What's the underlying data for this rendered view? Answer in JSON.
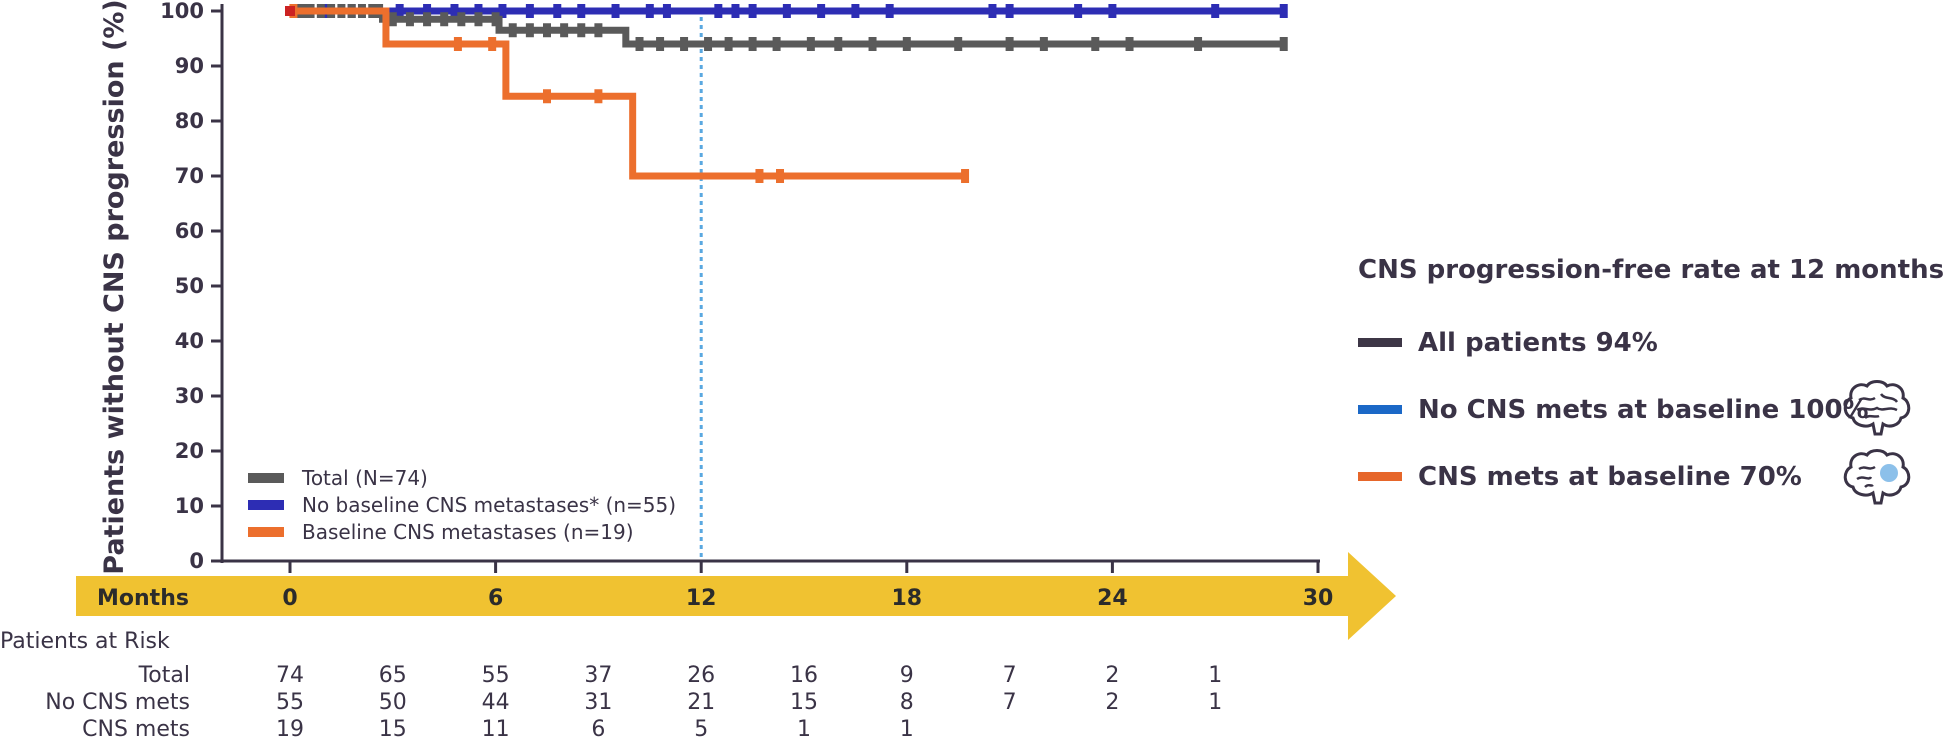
{
  "chart_data": {
    "type": "line",
    "step": true,
    "ylabel": "Patients without CNS progression (%)",
    "xlabel": "Months",
    "xlim": [
      0,
      30
    ],
    "ylim": [
      0,
      100
    ],
    "xticks": [
      "0",
      "6",
      "12",
      "18",
      "24",
      "30"
    ],
    "yticks": [
      "0",
      "10",
      "20",
      "30",
      "40",
      "50",
      "60",
      "70",
      "80",
      "90",
      "100"
    ],
    "reference_line_x": 12,
    "grid": false,
    "legend_position": "lower-left",
    "series": [
      {
        "name": "Total (N=74)",
        "color": "#5a5a5a",
        "x": [
          0,
          2.7,
          6.1,
          9.8,
          29
        ],
        "y": [
          100,
          98.5,
          96.5,
          94,
          94
        ],
        "censored_x": [
          0.2,
          0.4,
          0.6,
          0.9,
          1.2,
          1.5,
          1.8,
          2.1,
          2.4,
          2.6,
          3.0,
          3.5,
          4.0,
          4.5,
          5.0,
          5.5,
          6.0,
          6.5,
          7.0,
          7.5,
          8.0,
          8.5,
          9.0,
          10.2,
          10.8,
          11.5,
          12.2,
          12.8,
          13.5,
          14.2,
          15.2,
          16.0,
          17.0,
          18.0,
          19.5,
          21.0,
          22.0,
          23.5,
          24.5,
          26.5,
          29.0
        ]
      },
      {
        "name": "No baseline CNS metastases* (n=55)",
        "color": "#2d2db4",
        "x": [
          0,
          29
        ],
        "y": [
          100,
          100
        ],
        "censored_x": [
          0.5,
          1.0,
          1.8,
          2.5,
          3.2,
          4.0,
          4.8,
          5.5,
          6.2,
          7.0,
          7.8,
          8.5,
          9.5,
          10.5,
          11.0,
          12.5,
          13.0,
          13.5,
          14.5,
          15.5,
          16.5,
          17.5,
          20.5,
          21.0,
          23.0,
          24.0,
          27.0,
          29.0
        ]
      },
      {
        "name": "Baseline CNS metastases (n=19)",
        "color": "#ec6f2d",
        "x": [
          0,
          2.8,
          6.3,
          10.0,
          19.7
        ],
        "y": [
          100,
          94,
          84.5,
          70,
          70
        ],
        "censored_x": [
          0.1,
          4.9,
          5.9,
          7.5,
          9.0,
          13.7,
          14.3,
          19.7
        ]
      }
    ],
    "at_risk": {
      "title": "Patients at Risk",
      "times": [
        0,
        3,
        6,
        9,
        12,
        15,
        18,
        21,
        24,
        27
      ],
      "rows": [
        {
          "label": "Total",
          "values": [
            "74",
            "65",
            "55",
            "37",
            "26",
            "16",
            "9",
            "7",
            "2",
            "1"
          ]
        },
        {
          "label": "No CNS mets",
          "values": [
            "55",
            "50",
            "44",
            "31",
            "21",
            "15",
            "8",
            "7",
            "2",
            "1"
          ]
        },
        {
          "label": "CNS mets",
          "values": [
            "19",
            "15",
            "11",
            "6",
            "5",
            "1",
            "1",
            "",
            "",
            ""
          ]
        }
      ]
    }
  },
  "side_panel": {
    "title": "CNS progression-free rate at 12 months",
    "items": [
      {
        "label": "All patients 94%",
        "color": "#3d3646",
        "icon": "none"
      },
      {
        "label": "No CNS mets at baseline 100%",
        "color": "#1b68c7",
        "icon": "brain-icon"
      },
      {
        "label": "CNS mets at baseline 70%",
        "color": "#e6662a",
        "icon": "brain-with-metastasis-icon"
      }
    ]
  },
  "colors": {
    "arrow": "#f0c231",
    "axis": "#3a3346",
    "reference_line": "#5aa8e0",
    "metastasis": "#8cc0ea"
  }
}
